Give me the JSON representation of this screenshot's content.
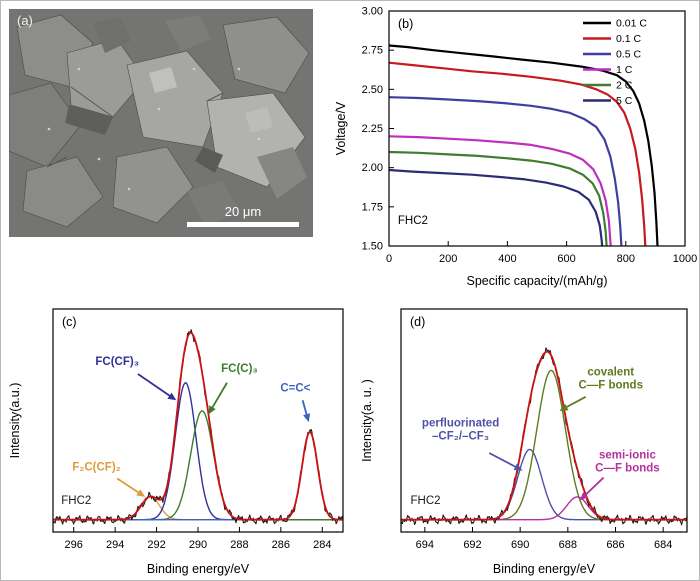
{
  "panels": {
    "a": {
      "label": "(a)",
      "scale_bar": "20 μm",
      "description": "SEM micrograph of FHC2 particles"
    },
    "b": {
      "label": "(b)"
    },
    "c": {
      "label": "(c)"
    },
    "d": {
      "label": "(d)"
    }
  },
  "chart_data": [
    {
      "id": "chart-b",
      "type": "line",
      "panel_label": "(b)",
      "xlabel": "Specific capacity/(mAh/g)",
      "ylabel": "Voltage/V",
      "xlim": [
        0,
        1000
      ],
      "ylim": [
        1.5,
        3.0
      ],
      "xticks": [
        0,
        200,
        400,
        600,
        800,
        1000
      ],
      "yticks": [
        1.5,
        1.75,
        2.0,
        2.25,
        2.5,
        2.75,
        3.0
      ],
      "legend": true,
      "series": [
        {
          "name": "0.01 C",
          "color": "#000000",
          "points": [
            [
              0,
              2.78
            ],
            [
              60,
              2.77
            ],
            [
              150,
              2.75
            ],
            [
              250,
              2.73
            ],
            [
              350,
              2.71
            ],
            [
              450,
              2.69
            ],
            [
              550,
              2.67
            ],
            [
              650,
              2.645
            ],
            [
              720,
              2.62
            ],
            [
              770,
              2.59
            ],
            [
              800,
              2.55
            ],
            [
              825,
              2.49
            ],
            [
              845,
              2.41
            ],
            [
              862,
              2.3
            ],
            [
              876,
              2.17
            ],
            [
              888,
              2.01
            ],
            [
              897,
              1.84
            ],
            [
              903,
              1.66
            ],
            [
              907,
              1.5
            ]
          ]
        },
        {
          "name": "0.1 C",
          "color": "#c8191e",
          "points": [
            [
              0,
              2.67
            ],
            [
              80,
              2.655
            ],
            [
              180,
              2.635
            ],
            [
              280,
              2.615
            ],
            [
              380,
              2.6
            ],
            [
              480,
              2.58
            ],
            [
              580,
              2.555
            ],
            [
              650,
              2.53
            ],
            [
              700,
              2.5
            ],
            [
              740,
              2.465
            ],
            [
              770,
              2.42
            ],
            [
              795,
              2.35
            ],
            [
              815,
              2.25
            ],
            [
              832,
              2.12
            ],
            [
              845,
              1.97
            ],
            [
              855,
              1.8
            ],
            [
              862,
              1.63
            ],
            [
              866,
              1.5
            ]
          ]
        },
        {
          "name": "0.5 C",
          "color": "#3f3f9f",
          "points": [
            [
              0,
              2.45
            ],
            [
              100,
              2.445
            ],
            [
              200,
              2.435
            ],
            [
              300,
              2.425
            ],
            [
              400,
              2.41
            ],
            [
              480,
              2.395
            ],
            [
              550,
              2.375
            ],
            [
              610,
              2.35
            ],
            [
              660,
              2.31
            ],
            [
              700,
              2.26
            ],
            [
              728,
              2.18
            ],
            [
              748,
              2.07
            ],
            [
              763,
              1.93
            ],
            [
              774,
              1.78
            ],
            [
              781,
              1.63
            ],
            [
              785,
              1.5
            ]
          ]
        },
        {
          "name": "1 C",
          "color": "#bf2fbf",
          "points": [
            [
              0,
              2.2
            ],
            [
              100,
              2.195
            ],
            [
              200,
              2.185
            ],
            [
              300,
              2.175
            ],
            [
              400,
              2.16
            ],
            [
              480,
              2.145
            ],
            [
              550,
              2.12
            ],
            [
              610,
              2.09
            ],
            [
              655,
              2.05
            ],
            [
              690,
              1.99
            ],
            [
              715,
              1.9
            ],
            [
              732,
              1.79
            ],
            [
              743,
              1.66
            ],
            [
              749,
              1.5
            ]
          ]
        },
        {
          "name": "2 C",
          "color": "#3e7c2f",
          "points": [
            [
              0,
              2.1
            ],
            [
              100,
              2.095
            ],
            [
              200,
              2.085
            ],
            [
              300,
              2.075
            ],
            [
              400,
              2.06
            ],
            [
              480,
              2.045
            ],
            [
              550,
              2.025
            ],
            [
              610,
              1.995
            ],
            [
              655,
              1.955
            ],
            [
              688,
              1.9
            ],
            [
              710,
              1.82
            ],
            [
              724,
              1.71
            ],
            [
              732,
              1.59
            ],
            [
              735,
              1.5
            ]
          ]
        },
        {
          "name": "5 C",
          "color": "#2c2c74",
          "points": [
            [
              0,
              1.985
            ],
            [
              80,
              1.975
            ],
            [
              180,
              1.965
            ],
            [
              280,
              1.955
            ],
            [
              380,
              1.94
            ],
            [
              460,
              1.925
            ],
            [
              530,
              1.905
            ],
            [
              590,
              1.88
            ],
            [
              640,
              1.845
            ],
            [
              675,
              1.795
            ],
            [
              698,
              1.72
            ],
            [
              712,
              1.63
            ],
            [
              719,
              1.53
            ],
            [
              720,
              1.5
            ]
          ]
        }
      ],
      "annotations": [
        {
          "text": "FHC2",
          "color": "#000000",
          "tx": 30,
          "ty": 1.64,
          "anchor": "start"
        }
      ]
    },
    {
      "id": "chart-c",
      "type": "xps",
      "panel_label": "(c)",
      "xlabel": "Binding energy/eV",
      "ylabel": "Intensity(a.u.)",
      "xlim": [
        297,
        283
      ],
      "xticks": [
        296,
        294,
        292,
        290,
        288,
        286,
        284
      ],
      "baseline": 0.02,
      "data_color": "#1a1a1a",
      "envelope_color": "#cc1111",
      "peaks": [
        {
          "name": "F₂C(CF)₂",
          "color": "#e09a3c",
          "center": 292.3,
          "amplitude": 0.13,
          "sigma": 0.45
        },
        {
          "name": "FC(CF)₃",
          "color": "#31319b",
          "center": 290.6,
          "amplitude": 0.78,
          "sigma": 0.5
        },
        {
          "name": "FC(C)₃",
          "color": "#3d7a2f",
          "center": 289.8,
          "amplitude": 0.62,
          "sigma": 0.55
        },
        {
          "name": "C=C<",
          "color": "#3b63c4",
          "center": 284.6,
          "amplitude": 0.5,
          "sigma": 0.38
        }
      ],
      "annotations": [
        {
          "text": "FC(CF)₃",
          "color": "#31319b",
          "tx": 293.9,
          "ty": 0.9,
          "sx": 292.9,
          "sy": 0.85,
          "ax": 291.05,
          "ay": 0.7
        },
        {
          "text": "FC(C)₃",
          "color": "#3d7a2f",
          "tx": 288.0,
          "ty": 0.86,
          "sx": 288.6,
          "sy": 0.8,
          "ax": 289.5,
          "ay": 0.62
        },
        {
          "text": "C=C<",
          "color": "#3b63c4",
          "tx": 285.3,
          "ty": 0.75,
          "sx": 284.95,
          "sy": 0.7,
          "ax": 284.65,
          "ay": 0.575
        },
        {
          "text": "F₂C(CF)₂",
          "color": "#e09a3c",
          "tx": 294.9,
          "ty": 0.3,
          "sx": 293.9,
          "sy": 0.255,
          "ax": 292.55,
          "ay": 0.15
        },
        {
          "text": "FHC2",
          "color": "#1a1a1a",
          "tx": 296.6,
          "ty": 0.11,
          "anchor": "start"
        }
      ]
    },
    {
      "id": "chart-d",
      "type": "xps",
      "panel_label": "(d)",
      "xlabel": "Binding energy/eV",
      "ylabel": "Intensity(a. u. )",
      "xlim": [
        695,
        683
      ],
      "xticks": [
        694,
        692,
        690,
        688,
        686,
        684
      ],
      "baseline": 0.02,
      "data_color": "#1a1a1a",
      "envelope_color": "#cc1111",
      "peaks": [
        {
          "name": "perfluorinated –CF₂/–CF₃",
          "color": "#5050a8",
          "center": 689.6,
          "amplitude": 0.4,
          "sigma": 0.5
        },
        {
          "name": "covalent C—F bonds",
          "color": "#5f7a1f",
          "center": 688.7,
          "amplitude": 0.85,
          "sigma": 0.6
        },
        {
          "name": "semi-ionic C—F bonds",
          "color": "#b5309c",
          "center": 687.6,
          "amplitude": 0.13,
          "sigma": 0.45
        }
      ],
      "annotations": [
        {
          "text": "perfluorinated\n–CF₂/–CF₃",
          "color": "#5050a8",
          "tx": 692.5,
          "ty": 0.55,
          "sx": 691.3,
          "sy": 0.4,
          "ax": 689.9,
          "ay": 0.3
        },
        {
          "text": "covalent\nC—F bonds",
          "color": "#5f7a1f",
          "tx": 686.2,
          "ty": 0.84,
          "sx": 687.25,
          "sy": 0.72,
          "ax": 688.35,
          "ay": 0.64
        },
        {
          "text": "semi-ionic\nC—F bonds",
          "color": "#b5309c",
          "tx": 685.5,
          "ty": 0.37,
          "sx": 686.5,
          "sy": 0.26,
          "ax": 687.5,
          "ay": 0.13
        },
        {
          "text": "FHC2",
          "color": "#1a1a1a",
          "tx": 694.6,
          "ty": 0.11,
          "anchor": "start"
        }
      ]
    }
  ]
}
